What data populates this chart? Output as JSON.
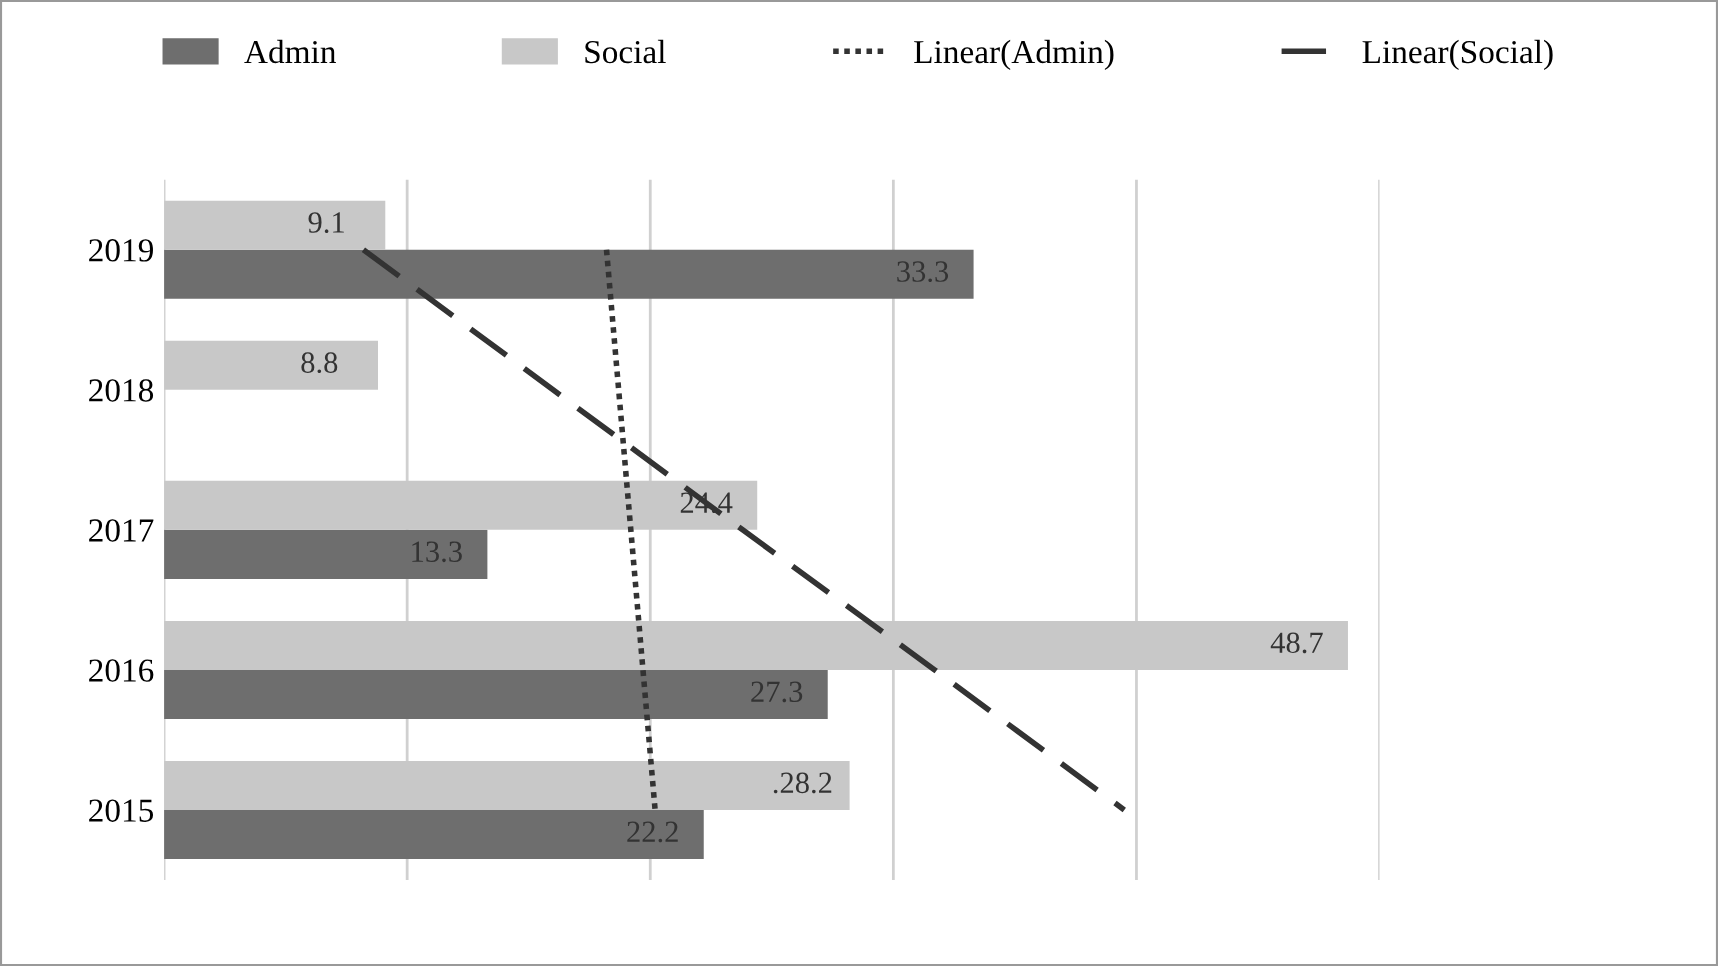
{
  "chart_data": {
    "type": "bar",
    "orientation": "horizontal",
    "categories": [
      "2019",
      "2018",
      "2017",
      "2016",
      "2015"
    ],
    "series": [
      {
        "name": "Admin",
        "color": "#6e6e6e",
        "values": [
          33.3,
          0,
          13.3,
          27.3,
          22.2
        ],
        "value_labels": [
          "33.3",
          null,
          "13.3",
          "27.3",
          "22.2"
        ]
      },
      {
        "name": "Social",
        "color": "#c8c8c8",
        "values": [
          9.1,
          8.8,
          24.4,
          48.7,
          28.2
        ],
        "value_labels": [
          "9.1",
          "8.8",
          "24.4",
          "48.7",
          ".28.2"
        ]
      },
      {
        "name": "Linear(Admin)",
        "type": "line",
        "color": "#333333",
        "line_style": "dotted",
        "values": [
          18.2,
          18.7,
          19.2,
          19.7,
          20.2
        ]
      },
      {
        "name": "Linear(Social)",
        "type": "line",
        "color": "#333333",
        "line_style": "dashed",
        "values": [
          8.2,
          16.0,
          23.8,
          31.7,
          39.5
        ]
      }
    ],
    "xlim": [
      0,
      50
    ],
    "xticks": [
      {
        "value": 0,
        "label": null
      },
      {
        "value": 10,
        "label": null
      },
      {
        "value": 20,
        "label": null
      },
      {
        "value": 30,
        "label": null
      },
      {
        "value": 40,
        "label": null
      },
      {
        "value": 50,
        "label": null
      }
    ],
    "grid": "x",
    "legend": "top",
    "tick_labels": "y"
  }
}
